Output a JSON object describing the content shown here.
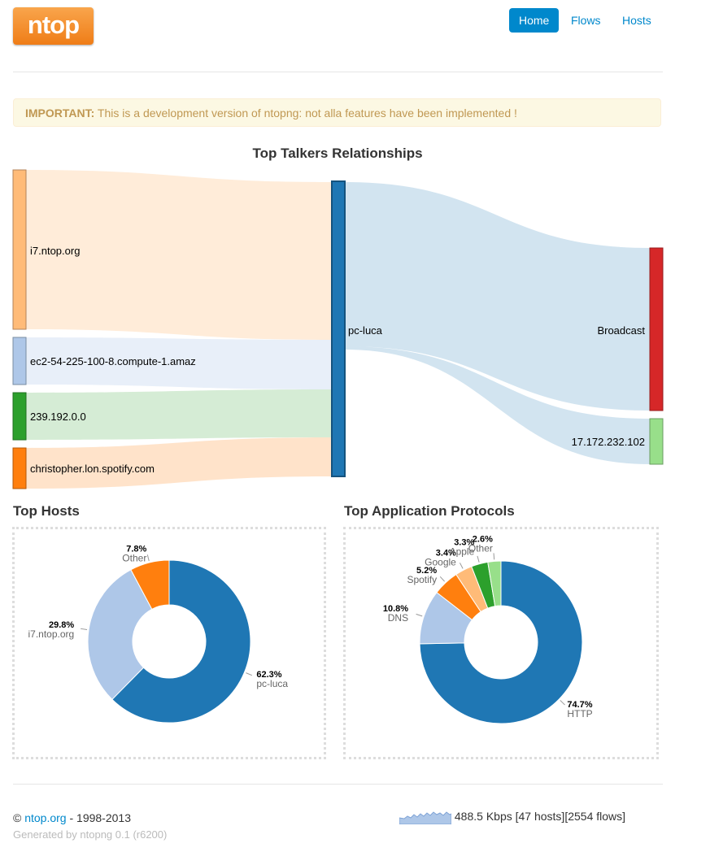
{
  "header": {
    "logo": "ntop",
    "nav": [
      "Home",
      "Flows",
      "Hosts"
    ]
  },
  "alert": {
    "label": "IMPORTANT:",
    "text": " This is a development version of ntopng: not alla features have been implemented !"
  },
  "sankey": {
    "title": "Top Talkers Relationships",
    "sources": [
      "i7.ntop.org",
      "ec2-54-225-100-8.compute-1.amaz",
      "239.192.0.0",
      "christopher.lon.spotify.com"
    ],
    "middle": "pc-luca",
    "targets": [
      "Broadcast",
      "17.172.232.102"
    ],
    "colors": {
      "sources": [
        "#ffbb78",
        "#aec7e8",
        "#2ca02c",
        "#ff7f0e"
      ],
      "middle": "#1f77b4",
      "targets": [
        "#d62728",
        "#98df8a"
      ]
    }
  },
  "top_hosts": {
    "title": "Top Hosts",
    "chart_data": {
      "type": "pie",
      "labels": [
        "pc-luca",
        "i7.ntop.org",
        "Other"
      ],
      "values": [
        62.3,
        29.8,
        7.8
      ],
      "value_labels": [
        "62.3%",
        "29.8%",
        "7.8%"
      ],
      "colors": [
        "#1f77b4",
        "#aec7e8",
        "#ff7f0e"
      ]
    }
  },
  "top_protocols": {
    "title": "Top Application Protocols",
    "chart_data": {
      "type": "pie",
      "labels": [
        "HTTP",
        "DNS",
        "Spotify",
        "Google",
        "Apple",
        "Other"
      ],
      "values": [
        74.7,
        10.8,
        5.2,
        3.4,
        3.3,
        2.6
      ],
      "value_labels": [
        "74.7%",
        "10.8%",
        "5.2%",
        "3.4%",
        "3.3%",
        "2.6%"
      ],
      "colors": [
        "#1f77b4",
        "#aec7e8",
        "#ff7f0e",
        "#ffbb78",
        "#2ca02c",
        "#98df8a"
      ]
    }
  },
  "footer": {
    "copyright_symbol": "©",
    "link": "ntop.org",
    "years": " - 1998-2013",
    "generated": "Generated by ntopng 0.1 (r6200)",
    "stats": "488.5 Kbps [47 hosts][2554 flows]"
  }
}
